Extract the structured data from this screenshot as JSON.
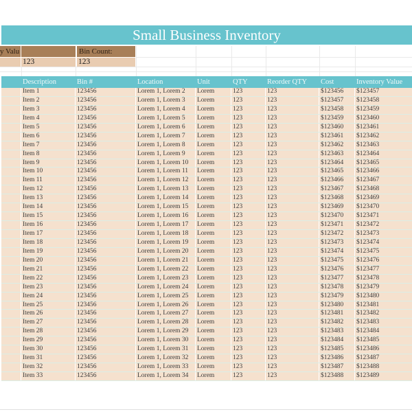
{
  "title": "Small Business Inventory",
  "theme": {
    "teal": "#67c3cd",
    "label_brown": "#a87f58",
    "value_tan": "#e9ccb1",
    "row_bg": "#f5e1ce",
    "header_text": "#f2fafa",
    "body_text": "#3b3b3b"
  },
  "summary": {
    "left_label": "y Valu",
    "left_value": "123",
    "bin_count_label": "Bin Count:",
    "bin_count_value": "123"
  },
  "table": {
    "columns": [
      "",
      "Description",
      "Bin #",
      "Location",
      "Unit",
      "QTY",
      "Reorder QTY",
      "Cost",
      "Inventory Value"
    ],
    "rows": [
      [
        "Item 1",
        "123456",
        "Lorem 1, Lorem 2",
        "Lorem",
        "123",
        "123",
        "$123456",
        "$123457"
      ],
      [
        "Item 2",
        "123456",
        "Lorem 1, Lorem 3",
        "Lorem",
        "123",
        "123",
        "$123457",
        "$123458"
      ],
      [
        "Item 3",
        "123456",
        "Lorem 1, Lorem 4",
        "Lorem",
        "123",
        "123",
        "$123458",
        "$123459"
      ],
      [
        "Item 4",
        "123456",
        "Lorem 1, Lorem 5",
        "Lorem",
        "123",
        "123",
        "$123459",
        "$123460"
      ],
      [
        "Item 5",
        "123456",
        "Lorem 1, Lorem 6",
        "Lorem",
        "123",
        "123",
        "$123460",
        "$123461"
      ],
      [
        "Item 6",
        "123456",
        "Lorem 1, Lorem 7",
        "Lorem",
        "123",
        "123",
        "$123461",
        "$123462"
      ],
      [
        "Item 7",
        "123456",
        "Lorem 1, Lorem 8",
        "Lorem",
        "123",
        "123",
        "$123462",
        "$123463"
      ],
      [
        "Item 8",
        "123456",
        "Lorem 1, Lorem 9",
        "Lorem",
        "123",
        "123",
        "$123463",
        "$123464"
      ],
      [
        "Item 9",
        "123456",
        "Lorem 1, Lorem 10",
        "Lorem",
        "123",
        "123",
        "$123464",
        "$123465"
      ],
      [
        "Item 10",
        "123456",
        "Lorem 1, Lorem 11",
        "Lorem",
        "123",
        "123",
        "$123465",
        "$123466"
      ],
      [
        "Item 11",
        "123456",
        "Lorem 1, Lorem 12",
        "Lorem",
        "123",
        "123",
        "$123466",
        "$123467"
      ],
      [
        "Item 12",
        "123456",
        "Lorem 1, Lorem 13",
        "Lorem",
        "123",
        "123",
        "$123467",
        "$123468"
      ],
      [
        "Item 13",
        "123456",
        "Lorem 1, Lorem 14",
        "Lorem",
        "123",
        "123",
        "$123468",
        "$123469"
      ],
      [
        "Item 14",
        "123456",
        "Lorem 1, Lorem 15",
        "Lorem",
        "123",
        "123",
        "$123469",
        "$123470"
      ],
      [
        "Item 15",
        "123456",
        "Lorem 1, Lorem 16",
        "Lorem",
        "123",
        "123",
        "$123470",
        "$123471"
      ],
      [
        "Item 16",
        "123456",
        "Lorem 1, Lorem 17",
        "Lorem",
        "123",
        "123",
        "$123471",
        "$123472"
      ],
      [
        "Item 17",
        "123456",
        "Lorem 1, Lorem 18",
        "Lorem",
        "123",
        "123",
        "$123472",
        "$123473"
      ],
      [
        "Item 18",
        "123456",
        "Lorem 1, Lorem 19",
        "Lorem",
        "123",
        "123",
        "$123473",
        "$123474"
      ],
      [
        "Item 19",
        "123456",
        "Lorem 1, Lorem 20",
        "Lorem",
        "123",
        "123",
        "$123474",
        "$123475"
      ],
      [
        "Item 20",
        "123456",
        "Lorem 1, Lorem 21",
        "Lorem",
        "123",
        "123",
        "$123475",
        "$123476"
      ],
      [
        "Item 21",
        "123456",
        "Lorem 1, Lorem 22",
        "Lorem",
        "123",
        "123",
        "$123476",
        "$123477"
      ],
      [
        "Item 22",
        "123456",
        "Lorem 1, Lorem 23",
        "Lorem",
        "123",
        "123",
        "$123477",
        "$123478"
      ],
      [
        "Item 23",
        "123456",
        "Lorem 1, Lorem 24",
        "Lorem",
        "123",
        "123",
        "$123478",
        "$123479"
      ],
      [
        "Item 24",
        "123456",
        "Lorem 1, Lorem 25",
        "Lorem",
        "123",
        "123",
        "$123479",
        "$123480"
      ],
      [
        "Item 25",
        "123456",
        "Lorem 1, Lorem 26",
        "Lorem",
        "123",
        "123",
        "$123480",
        "$123481"
      ],
      [
        "Item 26",
        "123456",
        "Lorem 1, Lorem 27",
        "Lorem",
        "123",
        "123",
        "$123481",
        "$123482"
      ],
      [
        "Item 27",
        "123456",
        "Lorem 1, Lorem 28",
        "Lorem",
        "123",
        "123",
        "$123482",
        "$123483"
      ],
      [
        "Item 28",
        "123456",
        "Lorem 1, Lorem 29",
        "Lorem",
        "123",
        "123",
        "$123483",
        "$123484"
      ],
      [
        "Item 29",
        "123456",
        "Lorem 1, Lorem 30",
        "Lorem",
        "123",
        "123",
        "$123484",
        "$123485"
      ],
      [
        "Item 30",
        "123456",
        "Lorem 1, Lorem 31",
        "Lorem",
        "123",
        "123",
        "$123485",
        "$123486"
      ],
      [
        "Item 31",
        "123456",
        "Lorem 1, Lorem 32",
        "Lorem",
        "123",
        "123",
        "$123486",
        "$123487"
      ],
      [
        "Item 32",
        "123456",
        "Lorem 1, Lorem 33",
        "Lorem",
        "123",
        "123",
        "$123487",
        "$123488"
      ],
      [
        "Item 33",
        "123456",
        "Lorem 1, Lorem 34",
        "Lorem",
        "123",
        "123",
        "$123488",
        "$123489"
      ]
    ]
  }
}
